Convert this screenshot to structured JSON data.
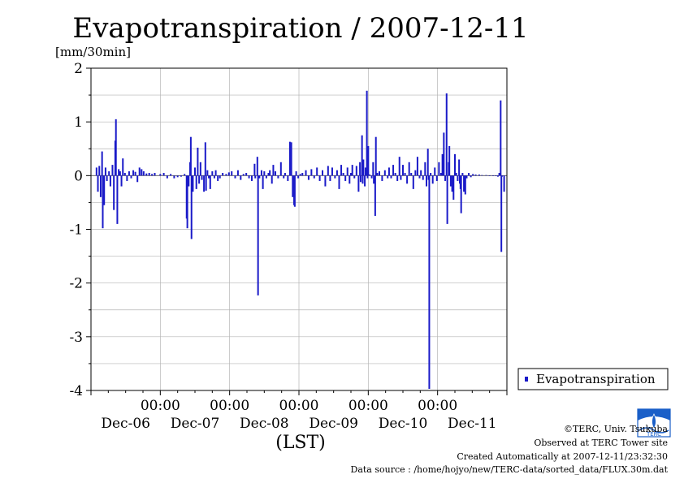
{
  "chart_data": {
    "type": "bar",
    "title": "Evapotranspiration / 2007-12-11",
    "ylabel": "[mm/30min]",
    "xlabel": "(LST)",
    "ylim": [
      -4,
      2
    ],
    "yticks": [
      "2",
      "1",
      "0",
      "-1",
      "-2",
      "-3",
      "-4"
    ],
    "ytick_values": [
      2,
      1,
      0,
      -1,
      -2,
      -3,
      -4
    ],
    "xlim_days": [
      0,
      6
    ],
    "xticks": [
      {
        "day": 1,
        "time": "00:00",
        "date": "Dec-06"
      },
      {
        "day": 2,
        "time": "00:00",
        "date": "Dec-07"
      },
      {
        "day": 3,
        "time": "00:00",
        "date": "Dec-08"
      },
      {
        "day": 4,
        "time": "00:00",
        "date": "Dec-09"
      },
      {
        "day": 5,
        "time": "00:00",
        "date": "Dec-10"
      }
    ],
    "extra_xlabels": [
      {
        "day": 5.5,
        "date": "Dec-11"
      }
    ],
    "grid": true,
    "legend_position": "right",
    "series": [
      {
        "name": "Evapotranspiration",
        "color": "#1a1ac8",
        "points": [
          [
            0.08,
            0.15
          ],
          [
            0.1,
            -0.3
          ],
          [
            0.12,
            0.18
          ],
          [
            0.14,
            -0.4
          ],
          [
            0.16,
            0.45
          ],
          [
            0.17,
            -0.98
          ],
          [
            0.19,
            -0.55
          ],
          [
            0.21,
            0.15
          ],
          [
            0.23,
            -0.1
          ],
          [
            0.26,
            0.08
          ],
          [
            0.28,
            -0.2
          ],
          [
            0.31,
            0.2
          ],
          [
            0.33,
            -0.64
          ],
          [
            0.35,
            0.65
          ],
          [
            0.36,
            1.05
          ],
          [
            0.38,
            -0.9
          ],
          [
            0.4,
            0.12
          ],
          [
            0.42,
            0.08
          ],
          [
            0.44,
            -0.2
          ],
          [
            0.46,
            0.32
          ],
          [
            0.49,
            0.05
          ],
          [
            0.52,
            -0.1
          ],
          [
            0.55,
            0.08
          ],
          [
            0.58,
            -0.05
          ],
          [
            0.61,
            0.1
          ],
          [
            0.64,
            0.07
          ],
          [
            0.67,
            -0.12
          ],
          [
            0.7,
            0.15
          ],
          [
            0.73,
            0.12
          ],
          [
            0.76,
            0.08
          ],
          [
            0.8,
            0.04
          ],
          [
            0.84,
            0.05
          ],
          [
            0.88,
            0.03
          ],
          [
            0.92,
            0.05
          ],
          [
            1.0,
            0.03
          ],
          [
            1.05,
            0.05
          ],
          [
            1.1,
            -0.05
          ],
          [
            1.15,
            0.03
          ],
          [
            1.2,
            -0.05
          ],
          [
            1.25,
            -0.03
          ],
          [
            1.3,
            -0.02
          ],
          [
            1.35,
            0.03
          ],
          [
            1.38,
            -0.8
          ],
          [
            1.39,
            -0.98
          ],
          [
            1.41,
            -0.2
          ],
          [
            1.43,
            0.25
          ],
          [
            1.44,
            0.72
          ],
          [
            1.45,
            -1.18
          ],
          [
            1.47,
            -0.3
          ],
          [
            1.5,
            0.15
          ],
          [
            1.52,
            -0.25
          ],
          [
            1.54,
            0.52
          ],
          [
            1.56,
            -0.15
          ],
          [
            1.58,
            0.25
          ],
          [
            1.6,
            -0.08
          ],
          [
            1.63,
            -0.3
          ],
          [
            1.65,
            0.62
          ],
          [
            1.66,
            -0.28
          ],
          [
            1.68,
            0.1
          ],
          [
            1.7,
            -0.05
          ],
          [
            1.72,
            -0.25
          ],
          [
            1.75,
            0.08
          ],
          [
            1.78,
            -0.05
          ],
          [
            1.8,
            0.1
          ],
          [
            1.83,
            -0.1
          ],
          [
            1.86,
            -0.05
          ],
          [
            1.9,
            0.05
          ],
          [
            1.95,
            0.03
          ],
          [
            1.99,
            0.06
          ],
          [
            2.03,
            0.08
          ],
          [
            2.08,
            -0.05
          ],
          [
            2.12,
            0.1
          ],
          [
            2.16,
            -0.08
          ],
          [
            2.2,
            0.03
          ],
          [
            2.24,
            0.05
          ],
          [
            2.28,
            -0.05
          ],
          [
            2.32,
            -0.1
          ],
          [
            2.36,
            0.22
          ],
          [
            2.37,
            -0.05
          ],
          [
            2.4,
            0.35
          ],
          [
            2.41,
            -2.23
          ],
          [
            2.43,
            -0.05
          ],
          [
            2.46,
            0.1
          ],
          [
            2.48,
            -0.25
          ],
          [
            2.5,
            0.08
          ],
          [
            2.53,
            -0.05
          ],
          [
            2.56,
            0.05
          ],
          [
            2.58,
            0.1
          ],
          [
            2.61,
            -0.15
          ],
          [
            2.63,
            0.2
          ],
          [
            2.66,
            0.08
          ],
          [
            2.7,
            -0.05
          ],
          [
            2.74,
            0.25
          ],
          [
            2.78,
            -0.05
          ],
          [
            2.8,
            0.05
          ],
          [
            2.84,
            -0.1
          ],
          [
            2.87,
            0.63
          ],
          [
            2.89,
            0.62
          ],
          [
            2.91,
            -0.4
          ],
          [
            2.93,
            -0.55
          ],
          [
            2.94,
            -0.58
          ],
          [
            2.96,
            0.08
          ],
          [
            2.99,
            -0.05
          ],
          [
            3.02,
            0.03
          ],
          [
            3.05,
            0.05
          ],
          [
            3.1,
            0.1
          ],
          [
            3.14,
            -0.08
          ],
          [
            3.18,
            0.12
          ],
          [
            3.22,
            -0.05
          ],
          [
            3.26,
            0.15
          ],
          [
            3.3,
            -0.1
          ],
          [
            3.34,
            0.1
          ],
          [
            3.38,
            -0.2
          ],
          [
            3.42,
            0.18
          ],
          [
            3.45,
            -0.1
          ],
          [
            3.48,
            0.15
          ],
          [
            3.52,
            -0.05
          ],
          [
            3.55,
            0.1
          ],
          [
            3.58,
            -0.25
          ],
          [
            3.61,
            0.2
          ],
          [
            3.64,
            0.05
          ],
          [
            3.67,
            -0.1
          ],
          [
            3.7,
            0.15
          ],
          [
            3.73,
            -0.15
          ],
          [
            3.75,
            0.05
          ],
          [
            3.77,
            0.2
          ],
          [
            3.8,
            -0.05
          ],
          [
            3.83,
            0.18
          ],
          [
            3.86,
            -0.3
          ],
          [
            3.88,
            0.25
          ],
          [
            3.89,
            -0.12
          ],
          [
            3.91,
            0.75
          ],
          [
            3.92,
            -0.15
          ],
          [
            3.93,
            0.3
          ],
          [
            3.95,
            -0.2
          ],
          [
            3.96,
            0.15
          ],
          [
            3.97,
            0.05
          ],
          [
            3.98,
            1.58
          ],
          [
            3.99,
            -0.05
          ],
          [
            4.0,
            0.55
          ],
          [
            4.02,
            0.02
          ],
          [
            4.05,
            -0.05
          ],
          [
            4.07,
            0.25
          ],
          [
            4.08,
            -0.15
          ],
          [
            4.1,
            -0.75
          ],
          [
            4.11,
            0.72
          ],
          [
            4.13,
            0.05
          ],
          [
            4.16,
            0.08
          ],
          [
            4.2,
            -0.1
          ],
          [
            4.24,
            0.1
          ],
          [
            4.28,
            -0.05
          ],
          [
            4.3,
            0.15
          ],
          [
            4.33,
            -0.05
          ],
          [
            4.36,
            0.2
          ],
          [
            4.39,
            0.05
          ],
          [
            4.42,
            -0.1
          ],
          [
            4.45,
            0.35
          ],
          [
            4.47,
            -0.08
          ],
          [
            4.5,
            0.2
          ],
          [
            4.53,
            0.05
          ],
          [
            4.56,
            -0.15
          ],
          [
            4.59,
            0.25
          ],
          [
            4.62,
            0.05
          ],
          [
            4.65,
            -0.25
          ],
          [
            4.68,
            0.1
          ],
          [
            4.71,
            0.35
          ],
          [
            4.74,
            -0.05
          ],
          [
            4.76,
            0.1
          ],
          [
            4.79,
            -0.08
          ],
          [
            4.82,
            0.25
          ],
          [
            4.84,
            -0.2
          ],
          [
            4.86,
            0.5
          ],
          [
            4.87,
            -0.08
          ],
          [
            4.88,
            -3.97
          ],
          [
            4.9,
            0.05
          ],
          [
            4.93,
            -0.15
          ],
          [
            4.96,
            0.15
          ],
          [
            4.99,
            -0.1
          ],
          [
            5.02,
            0.25
          ],
          [
            5.05,
            0.05
          ],
          [
            5.07,
            0.4
          ],
          [
            5.09,
            0.8
          ],
          [
            5.11,
            -0.1
          ],
          [
            5.13,
            1.53
          ],
          [
            5.14,
            -0.9
          ],
          [
            5.16,
            0.25
          ],
          [
            5.17,
            0.55
          ],
          [
            5.19,
            -0.2
          ],
          [
            5.21,
            -0.3
          ],
          [
            5.23,
            -0.45
          ],
          [
            5.25,
            0.4
          ],
          [
            5.27,
            0.05
          ],
          [
            5.29,
            -0.1
          ],
          [
            5.31,
            0.3
          ],
          [
            5.32,
            -0.15
          ],
          [
            5.33,
            -0.25
          ],
          [
            5.34,
            -0.7
          ],
          [
            5.36,
            0.05
          ],
          [
            5.38,
            -0.3
          ],
          [
            5.39,
            -0.15
          ],
          [
            5.4,
            -0.35
          ],
          [
            5.42,
            -0.05
          ],
          [
            5.45,
            0.05
          ],
          [
            5.48,
            -0.03
          ],
          [
            5.51,
            0.03
          ],
          [
            5.55,
            0.02
          ],
          [
            5.6,
            0.02
          ],
          [
            5.64,
            0.01
          ],
          [
            5.7,
            0.01
          ],
          [
            5.75,
            0.0
          ],
          [
            5.8,
            0.0
          ],
          [
            5.84,
            -0.01
          ],
          [
            5.87,
            -0.02
          ],
          [
            5.89,
            0.05
          ],
          [
            5.91,
            1.4
          ],
          [
            5.92,
            -1.42
          ],
          [
            5.93,
            -0.02
          ],
          [
            5.96,
            -0.3
          ]
        ]
      }
    ]
  },
  "credits": {
    "copyright": "©TERC, Univ. Tsukuba",
    "observed": "Observed at TERC Tower site",
    "created": "Created Automatically at 2007-12-11/23:32:30",
    "source": "Data source : /home/hojyo/new/TERC-data/sorted_data/FLUX.30m.dat"
  },
  "logo": {
    "text": "TERC",
    "color": "#1a5fc8"
  }
}
